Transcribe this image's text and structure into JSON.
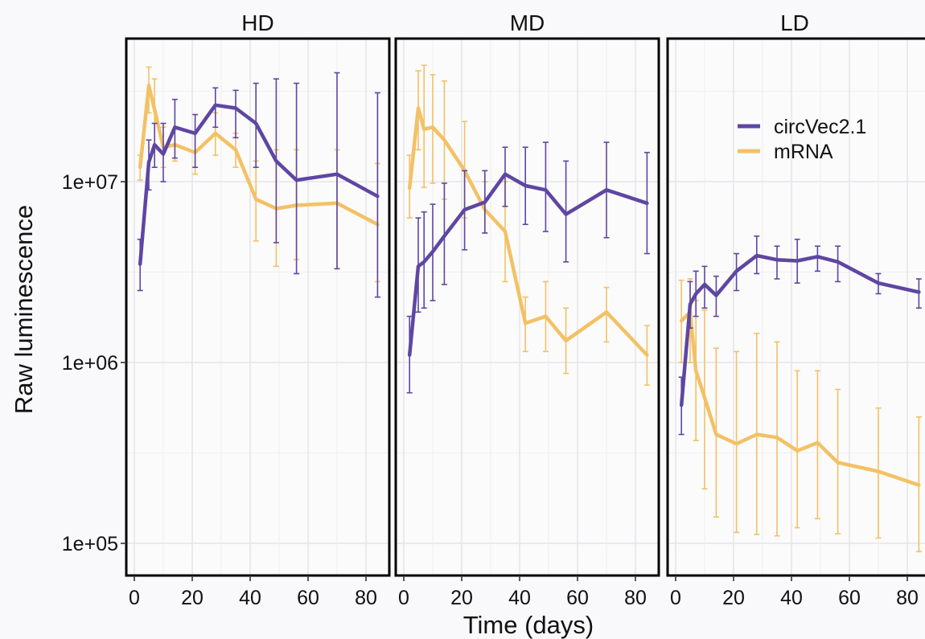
{
  "chart_data": {
    "type": "line",
    "xlabel": "Time (days)",
    "ylabel": "Raw luminescence",
    "y_scale": "log10",
    "ylim": [
      70000,
      58000000
    ],
    "xlim": [
      -1,
      86
    ],
    "x_ticks": [
      0,
      20,
      40,
      60,
      80
    ],
    "y_ticks": [
      100000,
      1000000,
      10000000
    ],
    "y_tick_labels": [
      "1e+05",
      "1e+06",
      "1e+07"
    ],
    "grid": true,
    "legend_position": "top-right (inside LD panel)",
    "series_colors": {
      "circVec2.1": "#5e46a2",
      "mRNA": "#f3c165"
    },
    "legend": [
      "circVec2.1",
      "mRNA"
    ],
    "panels": [
      {
        "title": "HD",
        "series": [
          {
            "name": "circVec2.1",
            "x": [
              2,
              5,
              7,
              10,
              14,
              21,
              28,
              35,
              42,
              49,
              56,
              70,
              84
            ],
            "y": [
              3500000,
              12800000,
              16000000,
              14200000,
              20000000,
              18500000,
              26500000,
              25500000,
              21000000,
              13000000,
              10200000,
              11000000,
              8300000
            ],
            "err_low": [
              2500000,
              9000000,
              12000000,
              10000000,
              13500000,
              12000000,
              20000000,
              17500000,
              12000000,
              4600000,
              3100000,
              3300000,
              2300000
            ],
            "err_high": [
              4800000,
              17000000,
              21000000,
              21000000,
              28500000,
              23500000,
              33000000,
              32000000,
              35000000,
              37000000,
              35000000,
              40000000,
              31000000
            ]
          },
          {
            "name": "mRNA",
            "x": [
              2,
              5,
              7,
              10,
              14,
              21,
              28,
              35,
              42,
              49,
              56,
              70,
              84
            ],
            "y": [
              12000000,
              34000000,
              25000000,
              15500000,
              16000000,
              14500000,
              18500000,
              15000000,
              8000000,
              7100000,
              7400000,
              7600000,
              5800000
            ],
            "err_low": [
              10200000,
              24000000,
              15000000,
              12000000,
              13000000,
              11000000,
              14000000,
              12000000,
              4700000,
              3400000,
              3700000,
              3300000,
              2800000
            ],
            "err_high": [
              14000000,
              43000000,
              37000000,
              20000000,
              19500000,
              19000000,
              24000000,
              18500000,
              13000000,
              15000000,
              15000000,
              15000000,
              12600000
            ]
          }
        ]
      },
      {
        "title": "MD",
        "series": [
          {
            "name": "circVec2.1",
            "x": [
              2,
              5,
              7,
              10,
              14,
              21,
              28,
              35,
              42,
              49,
              56,
              70,
              84
            ],
            "y": [
              1100000,
              3400000,
              3600000,
              4100000,
              5000000,
              7000000,
              7700000,
              11000000,
              9500000,
              9000000,
              6600000,
              9000000,
              7600000
            ],
            "err_low": [
              680000,
              1900000,
              2000000,
              2200000,
              2700000,
              4200000,
              5200000,
              7300000,
              5800000,
              5300000,
              3600000,
              4900000,
              4000000
            ],
            "err_high": [
              1800000,
              6300000,
              6800000,
              7500000,
              9800000,
              11500000,
              11500000,
              15500000,
              15500000,
              16500000,
              13000000,
              16500000,
              14500000
            ]
          },
          {
            "name": "mRNA",
            "x": [
              2,
              5,
              7,
              10,
              14,
              21,
              28,
              35,
              42,
              49,
              56,
              70,
              84
            ],
            "y": [
              9200000,
              25500000,
              19500000,
              20000000,
              17000000,
              11500000,
              7000000,
              5300000,
              1650000,
              1800000,
              1320000,
              1900000,
              1100000
            ],
            "err_low": [
              6300000,
              15000000,
              9300000,
              9800000,
              8000000,
              6300000,
              5200000,
              2800000,
              1150000,
              1150000,
              870000,
              1300000,
              750000
            ],
            "err_high": [
              14000000,
              41000000,
              44000000,
              39000000,
              36000000,
              21500000,
              10000000,
              10000000,
              2300000,
              2800000,
              2000000,
              2600000,
              1600000
            ]
          }
        ]
      },
      {
        "title": "LD",
        "series": [
          {
            "name": "circVec2.1",
            "x": [
              2,
              5,
              7,
              10,
              14,
              21,
              28,
              35,
              42,
              49,
              56,
              70,
              84
            ],
            "y": [
              580000,
              2100000,
              2400000,
              2700000,
              2350000,
              3200000,
              3900000,
              3700000,
              3650000,
              3850000,
              3600000,
              2750000,
              2450000
            ],
            "err_low": [
              400000,
              1550000,
              1800000,
              2000000,
              1800000,
              2500000,
              3100000,
              2900000,
              2750000,
              3200000,
              2800000,
              2400000,
              2000000
            ],
            "err_high": [
              830000,
              2800000,
              3200000,
              3400000,
              3000000,
              4000000,
              5000000,
              4400000,
              4800000,
              4400000,
              4400000,
              3100000,
              2900000
            ]
          },
          {
            "name": "mRNA",
            "x": [
              2,
              5,
              7,
              10,
              14,
              21,
              28,
              35,
              42,
              49,
              56,
              70,
              84
            ],
            "y": [
              1700000,
              1900000,
              900000,
              640000,
              400000,
              355000,
              400000,
              385000,
              325000,
              360000,
              280000,
              250000,
              210000
            ],
            "err_low": [
              1000000,
              1000000,
              370000,
              200000,
              140000,
              115000,
              112000,
              110000,
              122000,
              137000,
              113000,
              107000,
              90000
            ],
            "err_high": [
              2850000,
              2900000,
              2200000,
              1950000,
              1200000,
              1150000,
              1450000,
              1300000,
              900000,
              900000,
              710000,
              560000,
              500000
            ]
          }
        ]
      }
    ]
  }
}
